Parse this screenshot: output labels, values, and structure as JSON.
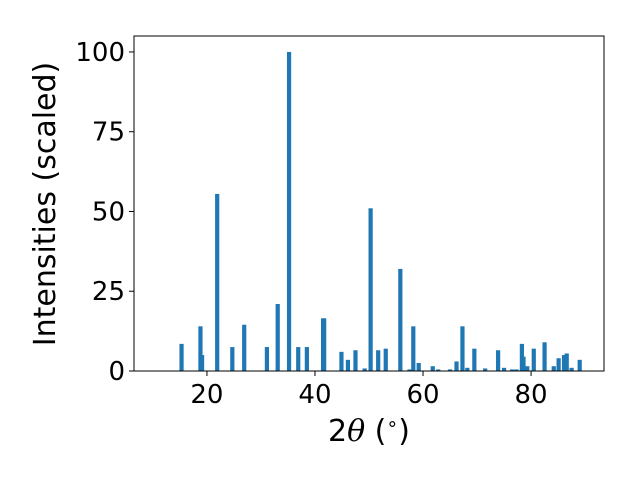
{
  "chart_data": {
    "type": "bar",
    "title": "",
    "xlabel_prefix": "2",
    "xlabel_symbol": "θ",
    "xlabel_suffix": " (",
    "xlabel_degree": "∘",
    "xlabel_close": ")",
    "ylabel": "Intensities (scaled)",
    "xlim": [
      6.5,
      93.5
    ],
    "ylim": [
      0,
      105
    ],
    "xticks": [
      20,
      40,
      60,
      80
    ],
    "yticks": [
      0,
      25,
      50,
      75,
      100
    ],
    "bar_color": "#1f77b4",
    "grid": false,
    "x": [
      15.3,
      18.8,
      19.1,
      21.9,
      24.7,
      26.9,
      31.1,
      33.1,
      35.2,
      36.9,
      38.5,
      41.5,
      41.7,
      44.9,
      46.1,
      47.5,
      49.2,
      50.3,
      51.7,
      53.1,
      55.8,
      57.5,
      58.2,
      59.2,
      61.8,
      62.8,
      65.0,
      66.2,
      67.3,
      68.2,
      69.5,
      71.5,
      73.9,
      75.0,
      76.5,
      77.3,
      78.3,
      78.6,
      79.3,
      80.5,
      82.5,
      84.2,
      85.1,
      86.1,
      86.6,
      87.5,
      89.0
    ],
    "values": [
      8.5,
      14.0,
      5.0,
      55.5,
      7.5,
      14.5,
      7.5,
      21.0,
      100.0,
      7.5,
      7.5,
      16.5,
      16.5,
      6.0,
      3.5,
      6.5,
      0.8,
      51.0,
      6.5,
      7.0,
      32.0,
      0.5,
      14.0,
      2.5,
      1.5,
      0.5,
      0.5,
      3.0,
      14.0,
      1.0,
      7.0,
      0.8,
      6.5,
      1.0,
      0.5,
      0.5,
      8.5,
      4.5,
      1.5,
      7.0,
      9.0,
      1.5,
      4.0,
      5.0,
      5.5,
      1.0,
      3.5
    ]
  }
}
